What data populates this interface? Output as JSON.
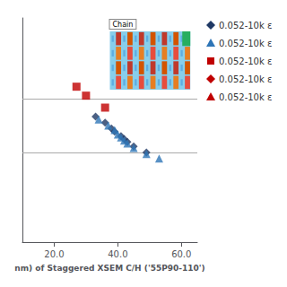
{
  "chart_data": {
    "type": "scatter",
    "xlabel": "nm) of Staggered XSEM C/H ('55P90-110')",
    "xlim": [
      10,
      65
    ],
    "ylim": [
      0,
      7.5
    ],
    "xticks": [
      {
        "value": 20,
        "label": "20.0"
      },
      {
        "value": 40,
        "label": "40.0"
      },
      {
        "value": 60,
        "label": "60.0"
      }
    ],
    "yticks": [],
    "tick_labels": "x",
    "grid": false,
    "legend": "right",
    "hlines": [
      3.0,
      4.8
    ],
    "annotations": [
      "Chain"
    ],
    "series": [
      {
        "name": "0.052-10k ε",
        "color": "#1f3864",
        "marker": "diamond",
        "x": [
          33,
          36,
          38,
          39,
          41,
          42,
          43,
          45,
          49
        ],
        "values": [
          4.2,
          4.0,
          3.8,
          3.7,
          3.55,
          3.45,
          3.35,
          3.2,
          3.0
        ]
      },
      {
        "name": "0.052-10k ε",
        "color": "#2e75b6",
        "marker": "triangle",
        "x": [
          34,
          37,
          39,
          40,
          41,
          42,
          43,
          45,
          49,
          53
        ],
        "values": [
          4.1,
          3.9,
          3.75,
          3.6,
          3.5,
          3.4,
          3.3,
          3.15,
          2.95,
          2.8
        ]
      },
      {
        "name": "0.052-10k ε",
        "color": "#c00000",
        "marker": "square",
        "x": [
          27,
          30,
          36
        ],
        "values": [
          5.2,
          4.9,
          4.5
        ]
      },
      {
        "name": "0.052-10k ε",
        "color": "#c00000",
        "marker": "diamond",
        "x": [],
        "values": []
      },
      {
        "name": "0.052-10k ε",
        "color": "#c00000",
        "marker": "triangle",
        "x": [],
        "values": []
      }
    ]
  }
}
